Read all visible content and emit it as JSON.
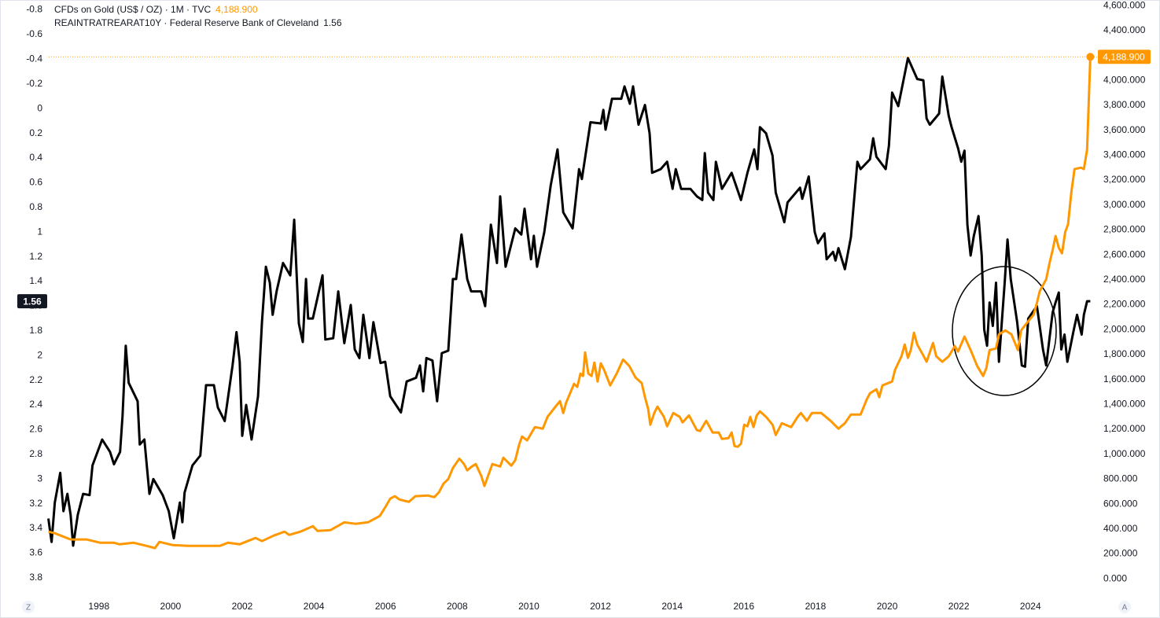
{
  "chart_data": {
    "type": "line",
    "xlim": [
      1996.6,
      2025.75
    ],
    "xticks": [
      1998,
      2000,
      2002,
      2004,
      2006,
      2008,
      2010,
      2012,
      2014,
      2016,
      2018,
      2020,
      2022,
      2024
    ],
    "ylim": [
      -0.88,
      3.96
    ],
    "y_inverted": true,
    "yticks": [
      -0.8,
      -0.6,
      -0.4,
      -0.2,
      0,
      0.2,
      0.4,
      0.6,
      0.8,
      1,
      1.2,
      1.4,
      1.6,
      1.8,
      2,
      2.2,
      2.4,
      2.6,
      2.8,
      3,
      3.2,
      3.4,
      3.6,
      3.8
    ],
    "y2lim": [
      -150,
      4645
    ],
    "y2ticks": [
      {
        "value": 0,
        "label": "0.000"
      },
      {
        "value": 200,
        "label": "200.000"
      },
      {
        "value": 400,
        "label": "400.000"
      },
      {
        "value": 600,
        "label": "600.000"
      },
      {
        "value": 800,
        "label": "800.000"
      },
      {
        "value": 1000,
        "label": "1,000.000"
      },
      {
        "value": 1200,
        "label": "1,200.000"
      },
      {
        "value": 1400,
        "label": "1,400.000"
      },
      {
        "value": 1600,
        "label": "1,600.000"
      },
      {
        "value": 1800,
        "label": "1,800.000"
      },
      {
        "value": 2000,
        "label": "2,000.000"
      },
      {
        "value": 2200,
        "label": "2,200.000"
      },
      {
        "value": 2400,
        "label": "2,400.000"
      },
      {
        "value": 2600,
        "label": "2,600.000"
      },
      {
        "value": 2800,
        "label": "2,800.000"
      },
      {
        "value": 3000,
        "label": "3,000.000"
      },
      {
        "value": 3200,
        "label": "3,200.000"
      },
      {
        "value": 3400,
        "label": "3,400.000"
      },
      {
        "value": 3600,
        "label": "3,600.000"
      },
      {
        "value": 3800,
        "label": "3,800.000"
      },
      {
        "value": 4000,
        "label": "4,000.000"
      },
      {
        "value": 4200,
        "label": "4,200.000"
      },
      {
        "value": 4400,
        "label": "4,400.000"
      },
      {
        "value": 4600,
        "label": "4,600.000"
      }
    ],
    "grid": false,
    "series": [
      {
        "name": "REAINTRATREARAT10Y · Federal Reserve Bank of Cleveland",
        "color": "#000000",
        "axis": "y",
        "x": [
          1996.59,
          1996.68,
          1996.77,
          1996.92,
          1997.01,
          1997.12,
          1997.21,
          1997.28,
          1997.41,
          1997.56,
          1997.74,
          1997.82,
          1998.09,
          1998.31,
          1998.42,
          1998.59,
          1998.66,
          1998.75,
          1998.83,
          1999.08,
          1999.14,
          1999.27,
          1999.41,
          1999.52,
          1999.78,
          1999.95,
          2000.09,
          2000.26,
          2000.33,
          2000.39,
          2000.61,
          2000.83,
          2000.99,
          2001.21,
          2001.32,
          2001.51,
          2001.73,
          2001.84,
          2001.93,
          2002.0,
          2002.11,
          2002.26,
          2002.44,
          2002.55,
          2002.66,
          2002.77,
          2002.85,
          2002.96,
          2003.14,
          2003.34,
          2003.45,
          2003.58,
          2003.69,
          2003.78,
          2003.84,
          2003.97,
          2004.24,
          2004.32,
          2004.54,
          2004.68,
          2004.85,
          2005.03,
          2005.14,
          2005.27,
          2005.38,
          2005.55,
          2005.66,
          2005.86,
          2005.99,
          2006.13,
          2006.43,
          2006.59,
          2006.85,
          2006.96,
          2007.05,
          2007.14,
          2007.31,
          2007.44,
          2007.57,
          2007.75,
          2007.88,
          2007.97,
          2008.12,
          2008.28,
          2008.39,
          2008.67,
          2008.78,
          2008.94,
          2009.11,
          2009.2,
          2009.35,
          2009.62,
          2009.79,
          2009.88,
          2010.06,
          2010.14,
          2010.23,
          2010.43,
          2010.61,
          2010.8,
          2010.96,
          2011.22,
          2011.4,
          2011.48,
          2011.72,
          2012.01,
          2012.08,
          2012.14,
          2012.32,
          2012.58,
          2012.67,
          2012.82,
          2012.91,
          2013.06,
          2013.24,
          2013.37,
          2013.44,
          2013.68,
          2013.86,
          2014.01,
          2014.1,
          2014.25,
          2014.51,
          2014.69,
          2014.84,
          2014.91,
          2015.0,
          2015.15,
          2015.22,
          2015.39,
          2015.66,
          2015.92,
          2016.1,
          2016.29,
          2016.38,
          2016.45,
          2016.62,
          2016.8,
          2016.89,
          2017.13,
          2017.22,
          2017.57,
          2017.63,
          2017.81,
          2017.98,
          2018.07,
          2018.25,
          2018.31,
          2018.49,
          2018.56,
          2018.64,
          2018.82,
          2018.99,
          2019.17,
          2019.26,
          2019.52,
          2019.61,
          2019.7,
          2019.96,
          2020.05,
          2020.14,
          2020.31,
          2020.58,
          2020.84,
          2021.01,
          2021.1,
          2021.19,
          2021.45,
          2021.54,
          2021.72,
          2021.8,
          2021.98,
          2022.07,
          2022.16,
          2022.24,
          2022.33,
          2022.42,
          2022.55,
          2022.64,
          2022.71,
          2022.79,
          2022.86,
          2022.95,
          2023.04,
          2023.12,
          2023.28,
          2023.36,
          2023.45,
          2023.63,
          2023.76,
          2023.85,
          2023.94,
          2024.18,
          2024.35,
          2024.44,
          2024.62,
          2024.7,
          2024.79,
          2024.86,
          2024.95,
          2025.03,
          2025.21,
          2025.3,
          2025.43,
          2025.49,
          2025.58,
          2025.67
        ],
        "values": [
          3.32,
          3.51,
          3.19,
          2.95,
          3.26,
          3.12,
          3.29,
          3.54,
          3.29,
          3.12,
          3.13,
          2.89,
          2.68,
          2.78,
          2.88,
          2.78,
          2.49,
          1.92,
          2.22,
          2.37,
          2.72,
          2.68,
          3.12,
          3.0,
          3.13,
          3.26,
          3.48,
          3.19,
          3.35,
          3.11,
          2.89,
          2.81,
          2.24,
          2.24,
          2.42,
          2.53,
          2.08,
          1.81,
          2.05,
          2.65,
          2.4,
          2.68,
          2.33,
          1.73,
          1.28,
          1.41,
          1.67,
          1.48,
          1.25,
          1.35,
          0.9,
          1.74,
          1.89,
          1.38,
          1.7,
          1.7,
          1.35,
          1.87,
          1.86,
          1.48,
          1.9,
          1.59,
          1.95,
          2.02,
          1.67,
          2.02,
          1.73,
          2.06,
          2.05,
          2.33,
          2.46,
          2.21,
          2.18,
          2.08,
          2.29,
          2.02,
          2.04,
          2.37,
          1.98,
          1.96,
          1.38,
          1.38,
          1.02,
          1.38,
          1.48,
          1.48,
          1.6,
          0.94,
          1.25,
          0.71,
          1.28,
          0.97,
          1.02,
          0.81,
          1.22,
          1.03,
          1.28,
          1.0,
          0.62,
          0.33,
          0.84,
          0.97,
          0.49,
          0.57,
          0.11,
          0.12,
          0.01,
          0.17,
          -0.08,
          -0.08,
          -0.18,
          -0.04,
          -0.18,
          0.13,
          -0.03,
          0.2,
          0.52,
          0.49,
          0.43,
          0.65,
          0.49,
          0.65,
          0.65,
          0.71,
          0.74,
          0.36,
          0.68,
          0.74,
          0.43,
          0.65,
          0.52,
          0.74,
          0.52,
          0.33,
          0.49,
          0.15,
          0.2,
          0.38,
          0.68,
          0.92,
          0.76,
          0.64,
          0.73,
          0.55,
          1.0,
          1.09,
          1.01,
          1.22,
          1.16,
          1.23,
          1.13,
          1.3,
          1.04,
          0.43,
          0.49,
          0.41,
          0.24,
          0.39,
          0.49,
          0.3,
          -0.13,
          -0.02,
          -0.41,
          -0.24,
          -0.23,
          0.08,
          0.13,
          0.04,
          -0.26,
          0.06,
          0.15,
          0.32,
          0.43,
          0.34,
          0.94,
          1.19,
          1.03,
          0.87,
          1.19,
          1.79,
          1.92,
          1.57,
          1.76,
          1.41,
          2.05,
          1.41,
          1.06,
          1.38,
          1.73,
          2.08,
          2.09,
          1.7,
          1.6,
          1.95,
          2.08,
          1.65,
          1.57,
          1.49,
          1.95,
          1.83,
          2.05,
          1.79,
          1.67,
          1.83,
          1.67,
          1.56,
          1.56
        ]
      },
      {
        "name": "CFDs on Gold (US$ / OZ) · 1M · TVC",
        "color": "#ff9800",
        "axis": "y2",
        "last_label": "4,188.900",
        "x": [
          1996.59,
          1996.77,
          1996.99,
          1997.21,
          1997.65,
          1998.04,
          1998.42,
          1998.57,
          1998.97,
          1999.41,
          1999.56,
          1999.69,
          2000.06,
          2000.5,
          2000.94,
          2001.38,
          2001.6,
          2001.93,
          2002.37,
          2002.55,
          2002.88,
          2003.18,
          2003.31,
          2003.62,
          2003.97,
          2004.1,
          2004.46,
          2004.85,
          2005.16,
          2005.51,
          2005.84,
          2005.99,
          2006.13,
          2006.26,
          2006.39,
          2006.65,
          2006.83,
          2007.18,
          2007.36,
          2007.49,
          2007.62,
          2007.75,
          2007.88,
          2008.06,
          2008.19,
          2008.28,
          2008.41,
          2008.52,
          2008.67,
          2008.76,
          2008.98,
          2009.2,
          2009.29,
          2009.51,
          2009.62,
          2009.73,
          2009.81,
          2009.95,
          2010.17,
          2010.39,
          2010.52,
          2010.78,
          2010.87,
          2010.96,
          2011.04,
          2011.26,
          2011.35,
          2011.44,
          2011.51,
          2011.57,
          2011.66,
          2011.75,
          2011.83,
          2011.92,
          2012.01,
          2012.1,
          2012.27,
          2012.45,
          2012.63,
          2012.8,
          2012.98,
          2013.15,
          2013.24,
          2013.33,
          2013.39,
          2013.5,
          2013.59,
          2013.77,
          2013.86,
          2014.03,
          2014.21,
          2014.29,
          2014.47,
          2014.69,
          2014.78,
          2014.95,
          2015.13,
          2015.3,
          2015.39,
          2015.57,
          2015.66,
          2015.74,
          2015.83,
          2015.92,
          2016.01,
          2016.1,
          2016.18,
          2016.27,
          2016.36,
          2016.45,
          2016.62,
          2016.8,
          2016.89,
          2017.06,
          2017.32,
          2017.5,
          2017.59,
          2017.76,
          2017.9,
          2018.16,
          2018.42,
          2018.64,
          2018.82,
          2018.99,
          2019.26,
          2019.43,
          2019.52,
          2019.7,
          2019.78,
          2019.87,
          2020.14,
          2020.22,
          2020.4,
          2020.49,
          2020.58,
          2020.66,
          2020.75,
          2020.84,
          2021.01,
          2021.1,
          2021.28,
          2021.37,
          2021.54,
          2021.72,
          2021.89,
          2021.98,
          2022.16,
          2022.33,
          2022.51,
          2022.68,
          2022.77,
          2022.86,
          2023.04,
          2023.12,
          2023.3,
          2023.47,
          2023.65,
          2023.74,
          2023.91,
          2024.09,
          2024.18,
          2024.26,
          2024.44,
          2024.53,
          2024.62,
          2024.7,
          2024.79,
          2024.88,
          2024.97,
          2025.05,
          2025.14,
          2025.23,
          2025.41,
          2025.49,
          2025.58,
          2025.67
        ],
        "values": [
          379,
          366,
          341,
          316,
          316,
          290,
          290,
          278,
          290,
          259,
          246,
          297,
          271,
          265,
          265,
          265,
          290,
          278,
          328,
          303,
          347,
          379,
          353,
          379,
          423,
          385,
          391,
          454,
          442,
          454,
          505,
          574,
          644,
          663,
          637,
          618,
          663,
          669,
          656,
          694,
          764,
          801,
          890,
          965,
          921,
          871,
          902,
          921,
          827,
          745,
          921,
          902,
          972,
          909,
          953,
          1079,
          1142,
          1111,
          1218,
          1205,
          1300,
          1395,
          1426,
          1331,
          1413,
          1565,
          1540,
          1647,
          1628,
          1817,
          1647,
          1628,
          1735,
          1584,
          1729,
          1678,
          1552,
          1647,
          1760,
          1710,
          1615,
          1571,
          1458,
          1363,
          1237,
          1331,
          1382,
          1300,
          1224,
          1331,
          1300,
          1256,
          1312,
          1193,
          1186,
          1268,
          1174,
          1174,
          1123,
          1129,
          1174,
          1066,
          1060,
          1085,
          1237,
          1224,
          1300,
          1218,
          1312,
          1344,
          1300,
          1237,
          1155,
          1249,
          1218,
          1300,
          1331,
          1268,
          1331,
          1331,
          1268,
          1205,
          1249,
          1319,
          1319,
          1439,
          1489,
          1521,
          1458,
          1552,
          1584,
          1678,
          1786,
          1880,
          1773,
          1836,
          1975,
          1880,
          1792,
          1742,
          1893,
          1786,
          1742,
          1786,
          1868,
          1824,
          1944,
          1836,
          1710,
          1628,
          1691,
          1836,
          1849,
          1962,
          1994,
          1962,
          1836,
          1994,
          2057,
          2120,
          2215,
          2309,
          2404,
          2530,
          2638,
          2751,
          2657,
          2612,
          2783,
          2846,
          3098,
          3288,
          3300,
          3288,
          3445,
          4188.9
        ]
      }
    ]
  },
  "controls": {
    "left": "Z",
    "right": "A"
  }
}
